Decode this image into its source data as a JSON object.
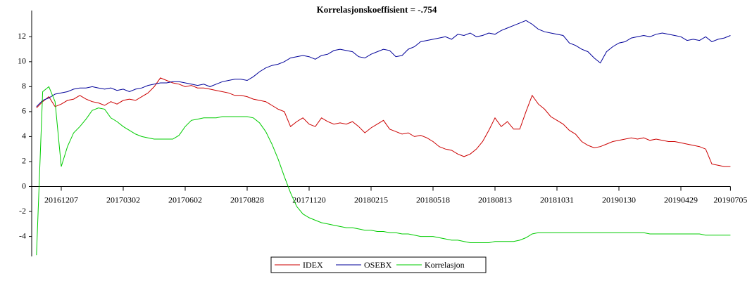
{
  "chart_data": {
    "type": "line",
    "title": "Korrelasjonskoeffisient =  -.754",
    "categories": [
      null,
      null,
      null,
      null,
      "20161207",
      null,
      null,
      null,
      null,
      null,
      null,
      null,
      null,
      null,
      "20170302",
      null,
      null,
      null,
      null,
      null,
      null,
      null,
      null,
      null,
      "20170602",
      null,
      null,
      null,
      null,
      null,
      null,
      null,
      null,
      null,
      "20170828",
      null,
      null,
      null,
      null,
      null,
      null,
      null,
      null,
      null,
      "20171120",
      null,
      null,
      null,
      null,
      null,
      null,
      null,
      null,
      null,
      "20180215",
      null,
      null,
      null,
      null,
      null,
      null,
      null,
      null,
      null,
      "20180518",
      null,
      null,
      null,
      null,
      null,
      null,
      null,
      null,
      null,
      "20180813",
      null,
      null,
      null,
      null,
      null,
      null,
      null,
      null,
      null,
      "20181031",
      null,
      null,
      null,
      null,
      null,
      null,
      null,
      null,
      null,
      "20190130",
      null,
      null,
      null,
      null,
      null,
      null,
      null,
      null,
      null,
      "20190429",
      null,
      null,
      null,
      null,
      null,
      null,
      null,
      "20190705"
    ],
    "series": [
      {
        "name": "IDEX",
        "color": "#cc0000",
        "values": [
          6.3,
          6.8,
          7.2,
          6.4,
          6.6,
          6.9,
          7.0,
          7.3,
          7.0,
          6.8,
          6.7,
          6.5,
          6.8,
          6.6,
          6.9,
          7.0,
          6.9,
          7.2,
          7.5,
          8.0,
          8.7,
          8.5,
          8.3,
          8.2,
          8.0,
          8.1,
          7.9,
          7.9,
          7.8,
          7.7,
          7.6,
          7.5,
          7.3,
          7.3,
          7.2,
          7.0,
          6.9,
          6.8,
          6.5,
          6.2,
          6.0,
          4.8,
          5.2,
          5.5,
          5.0,
          4.8,
          5.5,
          5.2,
          5.0,
          5.1,
          5.0,
          5.2,
          4.8,
          4.3,
          4.7,
          5.0,
          5.3,
          4.6,
          4.4,
          4.2,
          4.3,
          4.0,
          4.1,
          3.9,
          3.6,
          3.2,
          3.0,
          2.9,
          2.6,
          2.4,
          2.6,
          3.0,
          3.6,
          4.5,
          5.5,
          4.8,
          5.2,
          4.6,
          4.6,
          6.0,
          7.3,
          6.6,
          6.2,
          5.6,
          5.3,
          5.0,
          4.5,
          4.2,
          3.6,
          3.3,
          3.1,
          3.2,
          3.4,
          3.6,
          3.7,
          3.8,
          3.9,
          3.8,
          3.9,
          3.7,
          3.8,
          3.7,
          3.6,
          3.6,
          3.5,
          3.4,
          3.3,
          3.2,
          3.0,
          1.8,
          1.7,
          1.6,
          1.6
        ]
      },
      {
        "name": "OSEBX",
        "color": "#000099",
        "values": [
          6.4,
          6.9,
          7.1,
          7.4,
          7.5,
          7.6,
          7.8,
          7.9,
          7.9,
          8.0,
          7.9,
          7.8,
          7.9,
          7.7,
          7.8,
          7.6,
          7.8,
          7.9,
          8.1,
          8.2,
          8.3,
          8.3,
          8.4,
          8.4,
          8.3,
          8.2,
          8.1,
          8.2,
          8.0,
          8.2,
          8.4,
          8.5,
          8.6,
          8.6,
          8.5,
          8.8,
          9.2,
          9.5,
          9.7,
          9.8,
          10.0,
          10.3,
          10.4,
          10.5,
          10.4,
          10.2,
          10.5,
          10.6,
          10.9,
          11.0,
          10.9,
          10.8,
          10.4,
          10.3,
          10.6,
          10.8,
          11.0,
          10.9,
          10.4,
          10.5,
          11.0,
          11.2,
          11.6,
          11.7,
          11.8,
          11.9,
          12.0,
          11.8,
          12.2,
          12.1,
          12.3,
          12.0,
          12.1,
          12.3,
          12.2,
          12.5,
          12.7,
          12.9,
          13.1,
          13.3,
          13.0,
          12.6,
          12.4,
          12.3,
          12.2,
          12.1,
          11.5,
          11.3,
          11.0,
          10.8,
          10.3,
          9.9,
          10.8,
          11.2,
          11.5,
          11.6,
          11.9,
          12.0,
          12.1,
          12.0,
          12.2,
          12.3,
          12.2,
          12.1,
          12.0,
          11.7,
          11.8,
          11.7,
          12.0,
          11.6,
          11.8,
          11.9,
          12.1
        ]
      },
      {
        "name": "Korrelasjon",
        "color": "#00cc00",
        "values": [
          -5.5,
          7.6,
          8.0,
          6.8,
          1.6,
          3.2,
          4.3,
          4.8,
          5.4,
          6.1,
          6.3,
          6.2,
          5.5,
          5.2,
          4.8,
          4.5,
          4.2,
          4.0,
          3.9,
          3.8,
          3.8,
          3.8,
          3.8,
          4.1,
          4.8,
          5.3,
          5.4,
          5.5,
          5.5,
          5.5,
          5.6,
          5.6,
          5.6,
          5.6,
          5.6,
          5.5,
          5.1,
          4.4,
          3.4,
          2.2,
          0.8,
          -0.5,
          -1.6,
          -2.2,
          -2.5,
          -2.7,
          -2.9,
          -3.0,
          -3.1,
          -3.2,
          -3.3,
          -3.3,
          -3.4,
          -3.5,
          -3.5,
          -3.6,
          -3.6,
          -3.7,
          -3.7,
          -3.8,
          -3.8,
          -3.9,
          -4.0,
          -4.0,
          -4.0,
          -4.1,
          -4.2,
          -4.3,
          -4.3,
          -4.4,
          -4.5,
          -4.5,
          -4.5,
          -4.5,
          -4.4,
          -4.4,
          -4.4,
          -4.4,
          -4.3,
          -4.1,
          -3.8,
          -3.7,
          -3.7,
          -3.7,
          -3.7,
          -3.7,
          -3.7,
          -3.7,
          -3.7,
          -3.7,
          -3.7,
          -3.7,
          -3.7,
          -3.7,
          -3.7,
          -3.7,
          -3.7,
          -3.7,
          -3.7,
          -3.8,
          -3.8,
          -3.8,
          -3.8,
          -3.8,
          -3.8,
          -3.8,
          -3.8,
          -3.8,
          -3.9,
          -3.9,
          -3.9,
          -3.9,
          -3.9
        ]
      }
    ],
    "ylim": [
      -5.6,
      14.1
    ],
    "yticks": [
      -4,
      -2,
      0,
      2,
      4,
      6,
      8,
      10,
      12
    ],
    "grid": false,
    "legend": "bottom"
  }
}
